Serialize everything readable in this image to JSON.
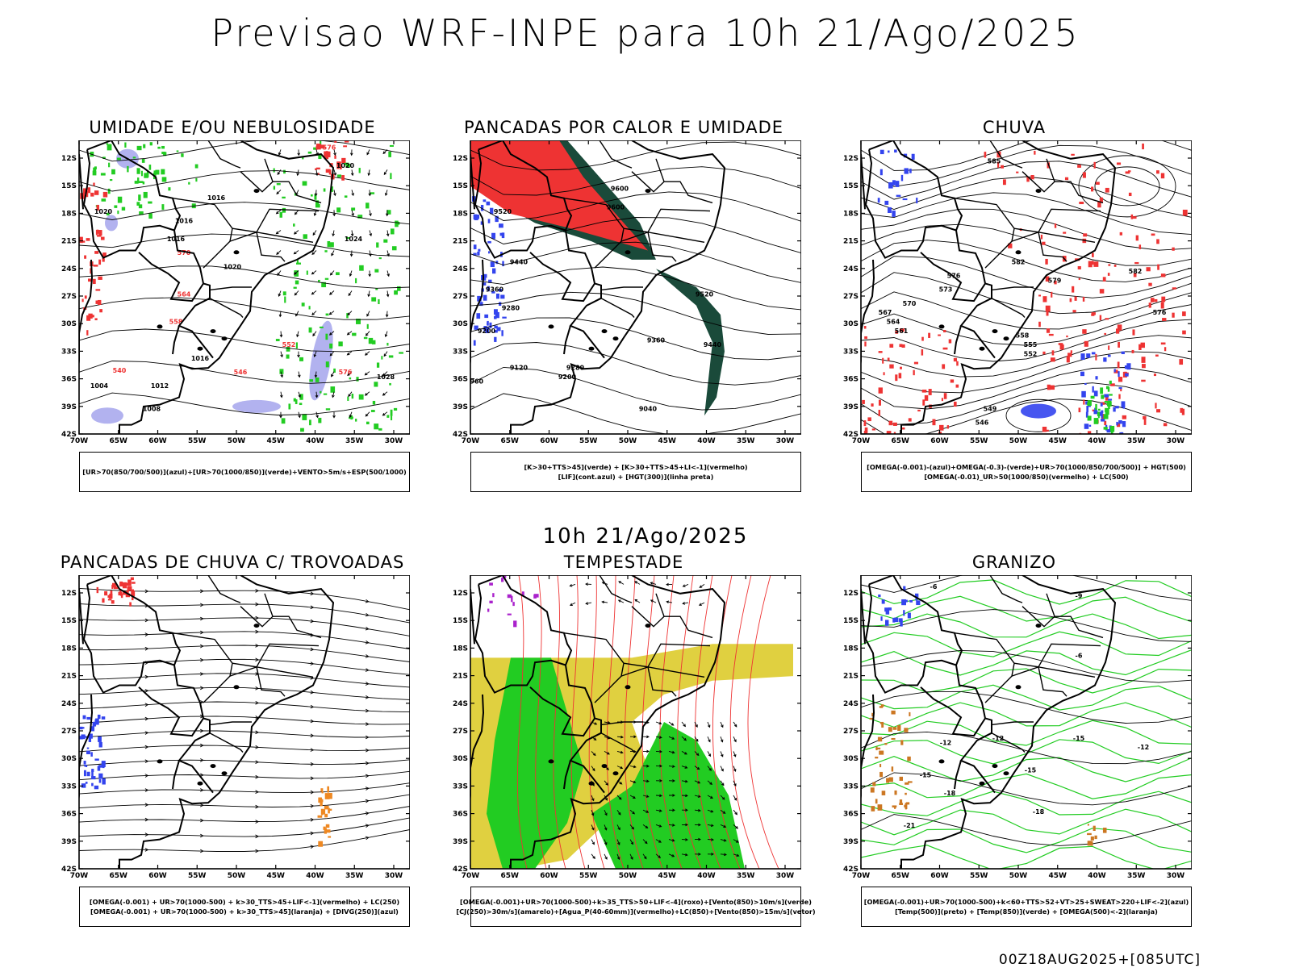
{
  "title": "Previsao WRF-INPE  para 10h 21/Ago/2025",
  "subtitle": "10h 21/Ago/2025",
  "footer": "00Z18AUG2025+[085UTC]",
  "map": {
    "lat_ticks": [
      "12S",
      "15S",
      "18S",
      "21S",
      "24S",
      "27S",
      "30S",
      "33S",
      "36S",
      "39S",
      "42S"
    ],
    "lon_ticks": [
      "70W",
      "65W",
      "60W",
      "55W",
      "50W",
      "45W",
      "40W",
      "35W",
      "30W"
    ]
  },
  "panels": [
    {
      "id": "umidade",
      "title": "UMIDADE E/OU NEBULOSIDADE",
      "legend": [
        "[UR>70(850/700/500)](azul)+[UR>70(1000/850)](verde)+VENTO>5m/s+ESP(500/1000)"
      ],
      "colors": {
        "blue": "#aaaaee",
        "green": "#22cc22",
        "red": "#ee3333"
      },
      "contour_labels": [
        "1020",
        "1016",
        "1016",
        "1016",
        "1024",
        "1020",
        "1016",
        "1012",
        "1008",
        "1004",
        "1028",
        "1020"
      ],
      "red_labels": [
        "570",
        "576",
        "564",
        "558",
        "552",
        "546",
        "540",
        "576"
      ]
    },
    {
      "id": "pancadas-calor",
      "title": "PANCADAS POR CALOR E UMIDADE",
      "legend": [
        "[K>30+TTS>45](verde) + [K>30+TTS>45+LI<-1](vermelho)",
        "[LIF](cont.azul) + [HGT(300)](linha preta)"
      ],
      "colors": {
        "red": "#ee3333",
        "green": "#1a4a3a",
        "blue": "#3344ee"
      },
      "contour_labels": [
        "9600",
        "9600",
        "9520",
        "9440",
        "9360",
        "9280",
        "9200",
        "9120",
        "8960",
        "9520",
        "9440",
        "9360",
        "9280",
        "9200",
        "9040"
      ]
    },
    {
      "id": "chuva",
      "title": "CHUVA",
      "legend": [
        "[OMEGA(-0.001)-(azul)+OMEGA(-0.3)-(verde)+UR>70(1000/850/700/500)] + HGT(500)",
        "[OMEGA(-0.01)_UR>50(1000/850)(vermelho) + LC(500)"
      ],
      "colors": {
        "red": "#ee3333",
        "blue": "#3344ee",
        "green": "#22cc22"
      },
      "contour_labels": [
        "585",
        "582",
        "579",
        "576",
        "573",
        "570",
        "567",
        "564",
        "561",
        "558",
        "555",
        "552",
        "549",
        "546",
        "582",
        "576"
      ]
    },
    {
      "id": "pancadas-trovoadas",
      "title": "PANCADAS DE CHUVA C/ TROVOADAS",
      "legend": [
        "[OMEGA(-0.001) + UR>70(1000-500) + k>30_TTS>45+LIF<-1](vermelho) + LC(250)",
        "[OMEGA(-0.001) + UR>70(1000-500) + k>30_TTS>45](laranja) + [DIVG(250)](azul)"
      ],
      "colors": {
        "red": "#ee3333",
        "orange": "#ee8822",
        "blue": "#3344ee"
      }
    },
    {
      "id": "tempestade",
      "title": "TEMPESTADE",
      "legend": [
        "[OMEGA(-0.001)+UR>70(1000-500)+k>35_TTS>50+LIF<-4](roxo)+[Vento(850)>10m/s](verde)",
        "[CJ(250)>30m/s](amarelo)+[Agua_P(40-60mm)](vermelho)+LC(850)+[Vento(850)>15m/s](vetor)"
      ],
      "colors": {
        "yellow": "#e0d040",
        "green": "#22cc22",
        "red": "#ee3333",
        "purple": "#aa22cc"
      }
    },
    {
      "id": "granizo",
      "title": "GRANIZO",
      "legend": [
        "[OMEGA(-0.001)+UR>70(1000-500)+k<60+TTS>52+VT>25+SWEAT>220+LIF<-2](azul)",
        "[Temp(500)](preto) + [Temp(850)](verde) + [OMEGA(500)<-2](laranja)"
      ],
      "colors": {
        "green": "#22cc22",
        "blue": "#3344ee",
        "orange": "#cc7722"
      },
      "contour_labels": [
        "-6",
        "-9",
        "-12",
        "-15",
        "-18",
        "-21",
        "-12",
        "-15",
        "-18",
        "-12",
        "-15",
        "-6"
      ]
    }
  ]
}
